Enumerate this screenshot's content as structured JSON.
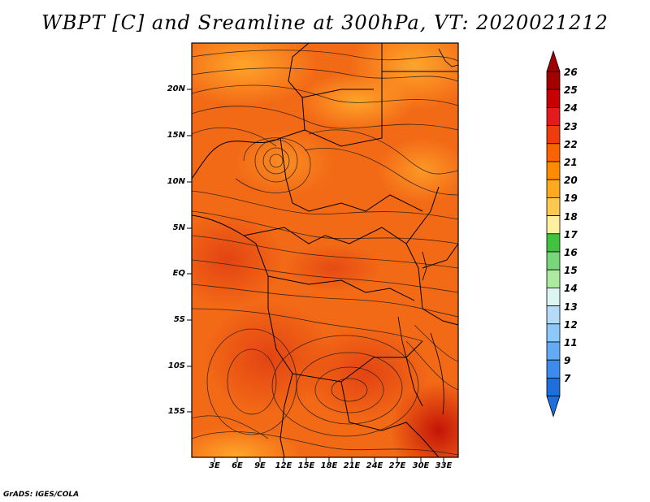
{
  "title": "WBPT [C] and Sreamline at 300hPa, VT: 2020021212",
  "credit": "GrADS: IGES/COLA",
  "lat_labels": [
    "20N",
    "15N",
    "10N",
    "5N",
    "EQ",
    "5S",
    "10S",
    "15S"
  ],
  "lon_labels": [
    "3E",
    "6E",
    "9E",
    "12E",
    "15E",
    "18E",
    "21E",
    "24E",
    "27E",
    "30E",
    "33E"
  ],
  "colorbar": {
    "labels": [
      "26",
      "25",
      "24",
      "23",
      "22",
      "21",
      "20",
      "19",
      "18",
      "17",
      "16",
      "15",
      "14",
      "13",
      "12",
      "11",
      "9",
      "7"
    ],
    "colors": [
      "#a50000",
      "#c80000",
      "#e41a1c",
      "#f03c0c",
      "#fa6400",
      "#ff8c00",
      "#ffaa1e",
      "#ffc850",
      "#fff0a0",
      "#41c341",
      "#78d778",
      "#aaeba0",
      "#dcf5f0",
      "#b4dcfa",
      "#8cc8fa",
      "#64aaf5",
      "#3c8cf0",
      "#1e6edc"
    ]
  },
  "colors": {
    "background": "#ffffff",
    "map_base": "#f36a16",
    "streamline": "#1a1a1a"
  }
}
